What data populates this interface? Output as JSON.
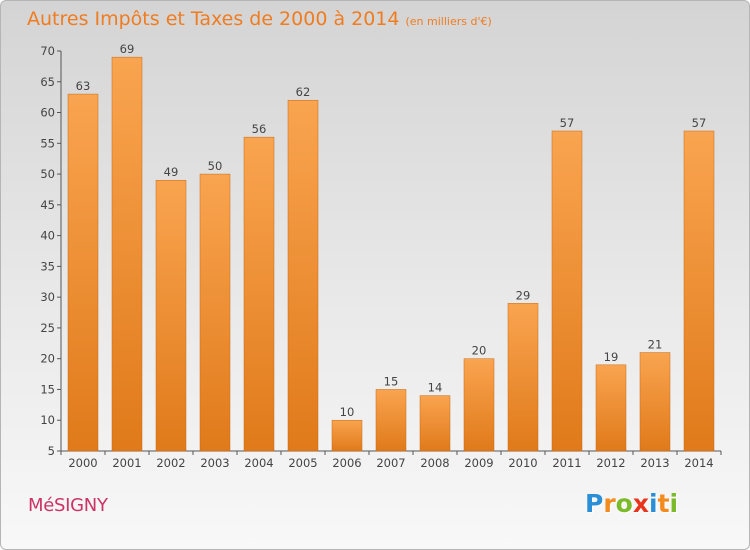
{
  "title": "Autres Impôts et Taxes de 2000 à 2014",
  "subtitle": "(en milliers d'€)",
  "place_name": "MéSIGNY",
  "logo": {
    "text": "Proxiti",
    "letter_colors": [
      "#2a8fd6",
      "#f28c1e",
      "#7bbb2a",
      "#e8361d",
      "#2a8fd6",
      "#f28c1e",
      "#7bbb2a"
    ]
  },
  "colors": {
    "bar_top": "#f9a450",
    "bar_bottom": "#e07a1a",
    "title": "#f07c20",
    "place": "#cc3366"
  },
  "chart_data": {
    "type": "bar",
    "title": "Autres Impôts et Taxes de 2000 à 2014",
    "subtitle": "(en milliers d'€)",
    "xlabel": "",
    "ylabel": "",
    "categories": [
      "2000",
      "2001",
      "2002",
      "2003",
      "2004",
      "2005",
      "2006",
      "2007",
      "2008",
      "2009",
      "2010",
      "2011",
      "2012",
      "2013",
      "2014"
    ],
    "values": [
      63,
      69,
      49,
      50,
      56,
      62,
      10,
      15,
      14,
      20,
      29,
      57,
      19,
      21,
      57
    ],
    "ylim": [
      5,
      70
    ],
    "yticks": [
      5,
      10,
      15,
      20,
      25,
      30,
      35,
      40,
      45,
      50,
      55,
      60,
      65,
      70
    ],
    "grid": false,
    "data_labels": true,
    "legend": "none"
  }
}
